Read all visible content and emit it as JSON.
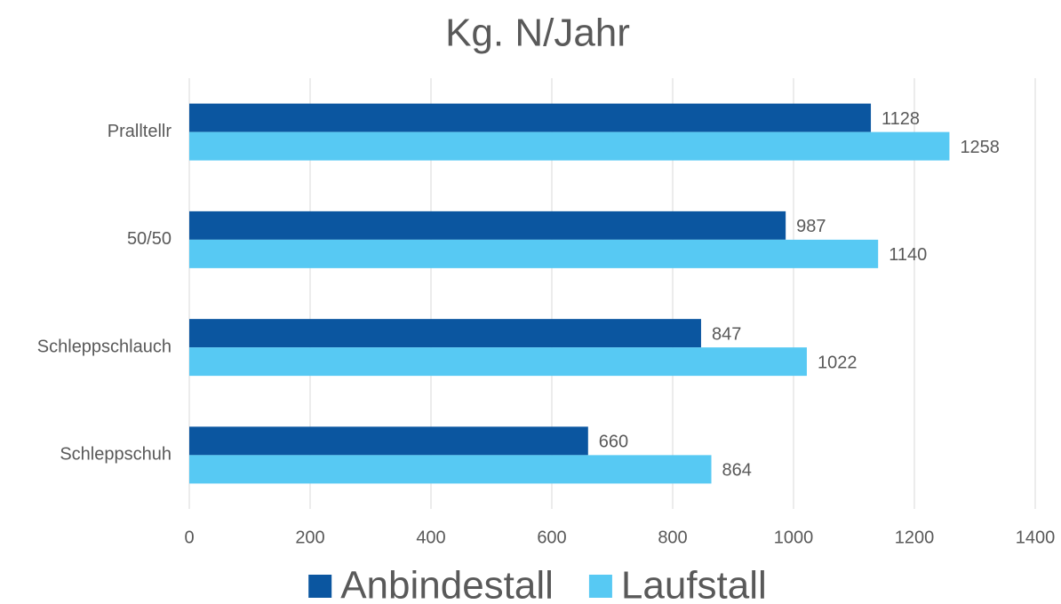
{
  "chart_data": {
    "type": "hbar",
    "title": "Kg. N/Jahr",
    "categories": [
      "Pralltellr",
      "50/50",
      "Schleppschlauch",
      "Schleppschuh"
    ],
    "series": [
      {
        "name": "Anbindestall",
        "color": "#0b56a0",
        "values": [
          1128,
          987,
          847,
          660
        ]
      },
      {
        "name": "Laufstall",
        "color": "#57c9f3",
        "values": [
          1258,
          1140,
          1022,
          864
        ]
      }
    ],
    "xlim": [
      0,
      1400
    ],
    "xticks": [
      0,
      200,
      400,
      600,
      800,
      1000,
      1200,
      1400
    ],
    "grid": true,
    "legend": "bottom"
  }
}
